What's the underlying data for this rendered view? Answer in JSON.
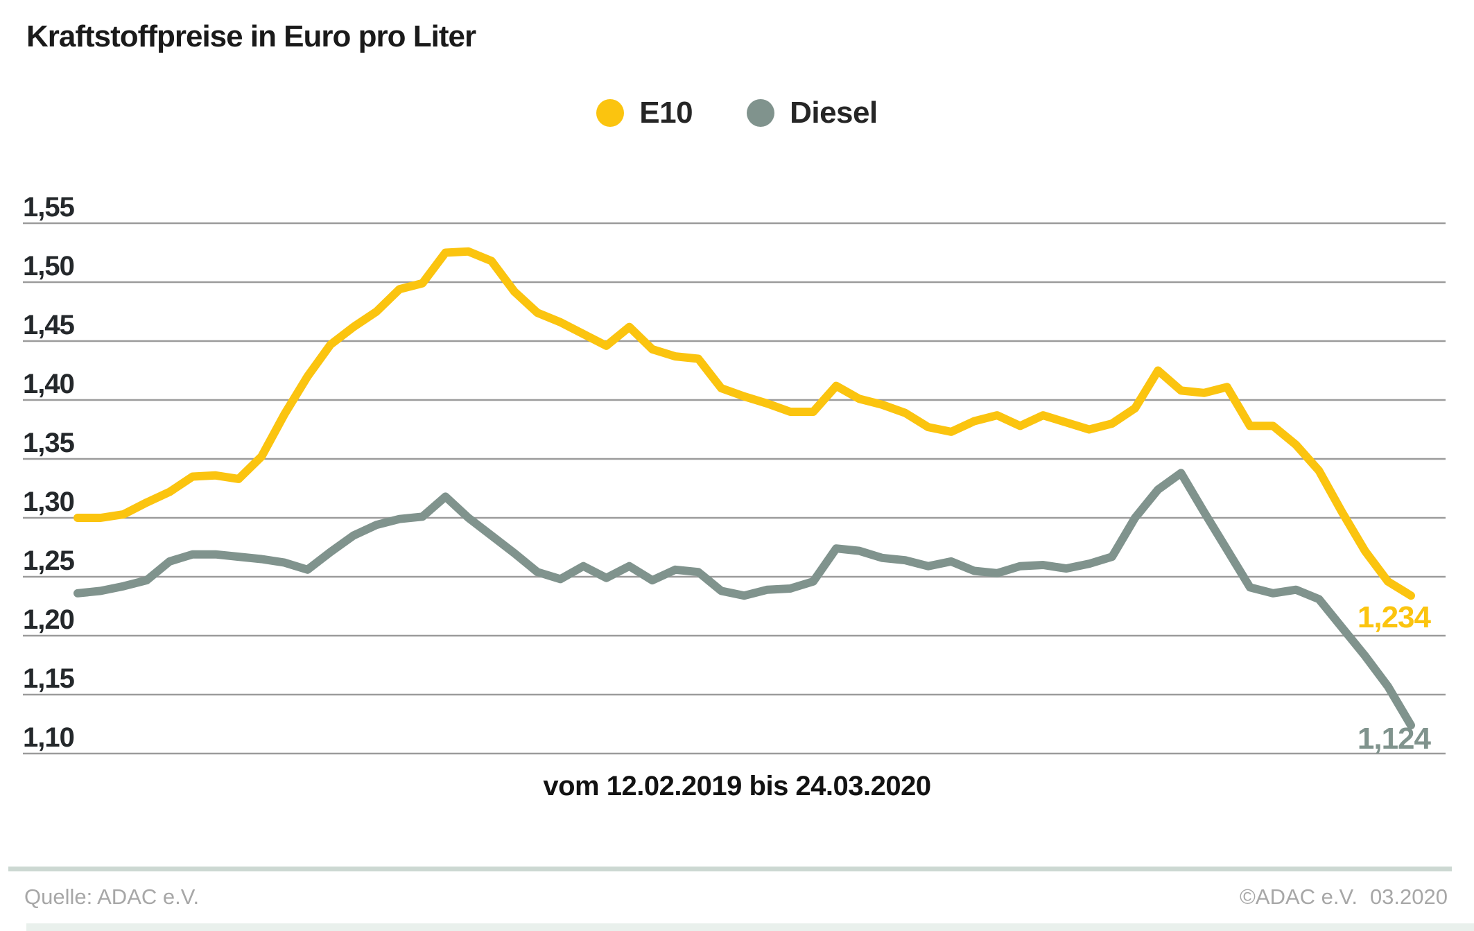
{
  "title": "Kraftstoffpreise in Euro pro Liter",
  "legend": [
    {
      "label": "E10",
      "color": "#fbc40f"
    },
    {
      "label": "Diesel",
      "color": "#80938d"
    }
  ],
  "colors": {
    "grid": "#9b9b9b",
    "tick_text": "#24282b",
    "e10": "#fbc40f",
    "diesel": "#80938d",
    "separator": "#ccd8d2",
    "bottom_bar": "#e9f0ec"
  },
  "chart_data": {
    "type": "line",
    "title": "Kraftstoffpreise in Euro pro Liter",
    "x_caption": "vom 12.02.2019 bis 24.03.2020",
    "x_start": "12.02.2019",
    "x_end": "24.03.2020",
    "frequency": "weekly",
    "n_points": 59,
    "ylim": [
      1.1,
      1.55
    ],
    "ytick_step": 0.05,
    "ytick_labels": [
      "1,55",
      "1,50",
      "1,45",
      "1,40",
      "1,35",
      "1,30",
      "1,25",
      "1,20",
      "1,15",
      "1,10"
    ],
    "grid": true,
    "legend_position": "top-center",
    "series": [
      {
        "name": "E10",
        "color": "#fbc40f",
        "end_label": "1,234",
        "end_value": 1.234,
        "values": [
          1.3,
          1.3,
          1.303,
          1.313,
          1.322,
          1.335,
          1.336,
          1.333,
          1.352,
          1.388,
          1.42,
          1.447,
          1.462,
          1.475,
          1.494,
          1.499,
          1.525,
          1.526,
          1.518,
          1.492,
          1.474,
          1.466,
          1.456,
          1.446,
          1.462,
          1.443,
          1.437,
          1.435,
          1.41,
          1.403,
          1.397,
          1.39,
          1.39,
          1.412,
          1.401,
          1.396,
          1.389,
          1.377,
          1.373,
          1.382,
          1.387,
          1.378,
          1.387,
          1.381,
          1.375,
          1.38,
          1.393,
          1.425,
          1.408,
          1.406,
          1.411,
          1.378,
          1.378,
          1.362,
          1.34,
          1.305,
          1.272,
          1.246,
          1.234
        ]
      },
      {
        "name": "Diesel",
        "color": "#80938d",
        "end_label": "1,124",
        "end_value": 1.124,
        "values": [
          1.236,
          1.238,
          1.242,
          1.247,
          1.263,
          1.269,
          1.269,
          1.267,
          1.265,
          1.262,
          1.256,
          1.271,
          1.285,
          1.294,
          1.299,
          1.301,
          1.318,
          1.3,
          1.285,
          1.27,
          1.254,
          1.248,
          1.259,
          1.249,
          1.259,
          1.247,
          1.256,
          1.254,
          1.238,
          1.234,
          1.239,
          1.24,
          1.246,
          1.274,
          1.272,
          1.266,
          1.264,
          1.259,
          1.263,
          1.255,
          1.253,
          1.259,
          1.26,
          1.257,
          1.261,
          1.267,
          1.3,
          1.324,
          1.338,
          1.305,
          1.273,
          1.241,
          1.236,
          1.239,
          1.231,
          1.207,
          1.183,
          1.157,
          1.124
        ]
      }
    ]
  },
  "footer": {
    "source": "Quelle: ADAC e.V.",
    "copyright": "©ADAC e.V.",
    "date": "03.2020"
  }
}
